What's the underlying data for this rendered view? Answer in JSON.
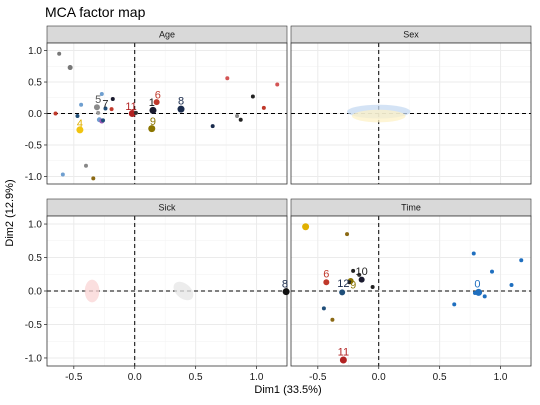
{
  "chart_data": {
    "type": "scatter",
    "title": "MCA factor map",
    "xlabel": "Dim1 (33.5%)",
    "ylabel": "Dim2 (12.9%)",
    "xlim": [
      -0.72,
      1.25
    ],
    "ylim": [
      -1.12,
      1.12
    ],
    "xticks": [
      -0.5,
      0.0,
      0.5,
      1.0
    ],
    "xtick_labels": [
      "-0.5",
      "0.0",
      "0.5",
      "1.0"
    ],
    "yticks": [
      -1.0,
      -0.5,
      0.0,
      0.5,
      1.0
    ],
    "ytick_labels": [
      "-1.0",
      "-0.5",
      "0.0",
      "0.5",
      "1.0"
    ],
    "grid": true,
    "panels": [
      {
        "name": "Age",
        "points": [
          {
            "x": -0.62,
            "y": 0.95,
            "color": "#777777",
            "size": 2
          },
          {
            "x": -0.53,
            "y": 0.73,
            "color": "#777777",
            "size": 2.5
          },
          {
            "x": -0.44,
            "y": 0.14,
            "color": "#6f9fd0",
            "size": 2
          },
          {
            "x": -0.65,
            "y": 0.0,
            "color": "#c0392b",
            "size": 2
          },
          {
            "x": -0.47,
            "y": -0.04,
            "color": "#1f4e79",
            "size": 2
          },
          {
            "x": -0.31,
            "y": 0.1,
            "color": "#8a8a8a",
            "size": 3
          },
          {
            "x": -0.27,
            "y": 0.31,
            "color": "#6f9fd0",
            "size": 2
          },
          {
            "x": -0.24,
            "y": 0.08,
            "color": "#1f4e79",
            "size": 2
          },
          {
            "x": -0.18,
            "y": 0.23,
            "color": "#1a1a2e",
            "size": 2
          },
          {
            "x": -0.19,
            "y": 0.07,
            "color": "#c0392b",
            "size": 2
          },
          {
            "x": -0.29,
            "y": -0.1,
            "color": "#6f9fd0",
            "size": 2.5
          },
          {
            "x": -0.27,
            "y": -0.12,
            "color": "#9b59b6",
            "size": 2.5
          },
          {
            "x": -0.26,
            "y": -0.11,
            "color": "#1f4e79",
            "size": 2
          },
          {
            "x": -0.3,
            "y": 0.01,
            "color": "#999999",
            "size": 2
          },
          {
            "x": -0.45,
            "y": -0.26,
            "color": "#f1c40f",
            "size": 3.5
          },
          {
            "x": -0.02,
            "y": 0.0,
            "color": "#b22222",
            "size": 3.5
          },
          {
            "x": 0.01,
            "y": 0.01,
            "color": "#333333",
            "size": 2
          },
          {
            "x": 0.15,
            "y": 0.05,
            "color": "#1a1a2e",
            "size": 3.5
          },
          {
            "x": 0.18,
            "y": 0.18,
            "color": "#c0392b",
            "size": 3
          },
          {
            "x": 0.14,
            "y": -0.24,
            "color": "#8b7500",
            "size": 3.5
          },
          {
            "x": 0.38,
            "y": 0.07,
            "color": "#1a2b4c",
            "size": 3.5
          },
          {
            "x": 0.64,
            "y": -0.2,
            "color": "#1a2b4c",
            "size": 2
          },
          {
            "x": 0.76,
            "y": 0.56,
            "color": "#d35454",
            "size": 2
          },
          {
            "x": 0.84,
            "y": -0.04,
            "color": "#888888",
            "size": 2
          },
          {
            "x": 0.87,
            "y": -0.1,
            "color": "#222222",
            "size": 2
          },
          {
            "x": 0.97,
            "y": 0.27,
            "color": "#222222",
            "size": 2
          },
          {
            "x": 1.06,
            "y": 0.09,
            "color": "#c0392b",
            "size": 2
          },
          {
            "x": 1.17,
            "y": 0.46,
            "color": "#d35454",
            "size": 2
          },
          {
            "x": -0.4,
            "y": -0.83,
            "color": "#888888",
            "size": 2
          },
          {
            "x": -0.59,
            "y": -0.97,
            "color": "#6f9fd0",
            "size": 2
          },
          {
            "x": -0.34,
            "y": -1.03,
            "color": "#8b6914",
            "size": 2
          }
        ],
        "labels": [
          {
            "text": "4",
            "x": -0.45,
            "y": -0.15,
            "color": "#e0b000"
          },
          {
            "text": "5",
            "x": -0.3,
            "y": 0.23,
            "color": "#555555"
          },
          {
            "text": "7",
            "x": -0.24,
            "y": 0.16,
            "color": "#222222"
          },
          {
            "text": "11",
            "x": -0.03,
            "y": 0.12,
            "color": "#b22222"
          },
          {
            "text": "1",
            "x": 0.14,
            "y": 0.18,
            "color": "#111111"
          },
          {
            "text": "6",
            "x": 0.19,
            "y": 0.3,
            "color": "#c0392b"
          },
          {
            "text": "8",
            "x": 0.38,
            "y": 0.21,
            "color": "#1a2b4c"
          },
          {
            "text": "9",
            "x": 0.15,
            "y": -0.12,
            "color": "#8b7500"
          }
        ],
        "ellipses": []
      },
      {
        "name": "Sex",
        "points": [],
        "labels": [],
        "ellipses": [
          {
            "cx": 0.0,
            "cy": 0.03,
            "rx": 0.26,
            "ry": 0.11,
            "color": "#c5d9f1"
          },
          {
            "cx": 0.0,
            "cy": -0.04,
            "rx": 0.22,
            "ry": 0.1,
            "color": "#fdf1c7"
          }
        ]
      },
      {
        "name": "Sick",
        "points": [],
        "labels": [],
        "ellipses": [
          {
            "cx": -0.35,
            "cy": 0.0,
            "rx": 0.06,
            "ry": 0.17,
            "color": "#f9d4d4"
          },
          {
            "cx": 0.4,
            "cy": 0.0,
            "rx": 0.06,
            "ry": 0.17,
            "color": "#e6e6e6",
            "rotate": 50
          }
        ]
      },
      {
        "name": "Time",
        "points": [
          {
            "x": -0.6,
            "y": 0.96,
            "color": "#e0b000",
            "size": 3.5
          },
          {
            "x": -0.26,
            "y": 0.85,
            "color": "#8b6914",
            "size": 2
          },
          {
            "x": 0.78,
            "y": 0.56,
            "color": "#1f6fbf",
            "size": 2
          },
          {
            "x": 0.93,
            "y": 0.29,
            "color": "#1f6fbf",
            "size": 2
          },
          {
            "x": 1.17,
            "y": 0.46,
            "color": "#1f6fbf",
            "size": 2
          },
          {
            "x": 1.09,
            "y": 0.09,
            "color": "#1f6fbf",
            "size": 2
          },
          {
            "x": -0.21,
            "y": 0.3,
            "color": "#222222",
            "size": 2
          },
          {
            "x": -0.16,
            "y": 0.24,
            "color": "#333333",
            "size": 2
          },
          {
            "x": -0.14,
            "y": 0.17,
            "color": "#1a1a2e",
            "size": 3
          },
          {
            "x": -0.23,
            "y": 0.15,
            "color": "#8b7500",
            "size": 3
          },
          {
            "x": -0.24,
            "y": 0.13,
            "color": "#222222",
            "size": 2
          },
          {
            "x": -0.05,
            "y": 0.06,
            "color": "#222222",
            "size": 2
          },
          {
            "x": -0.76,
            "y": -0.01,
            "color": "#111111",
            "size": 3.5
          },
          {
            "x": -0.43,
            "y": 0.13,
            "color": "#c0392b",
            "size": 3
          },
          {
            "x": -0.3,
            "y": -0.02,
            "color": "#1f4e79",
            "size": 3
          },
          {
            "x": 0.82,
            "y": -0.02,
            "color": "#1f6fbf",
            "size": 3.5
          },
          {
            "x": 0.79,
            "y": -0.03,
            "color": "#1f6fbf",
            "size": 2
          },
          {
            "x": 0.62,
            "y": -0.2,
            "color": "#1f6fbf",
            "size": 2
          },
          {
            "x": 0.87,
            "y": -0.08,
            "color": "#1f6fbf",
            "size": 2
          },
          {
            "x": -0.45,
            "y": -0.26,
            "color": "#1f4e79",
            "size": 2
          },
          {
            "x": -0.38,
            "y": -0.43,
            "color": "#8b6914",
            "size": 2
          },
          {
            "x": -0.29,
            "y": -1.03,
            "color": "#b22222",
            "size": 3.5
          }
        ],
        "labels": [
          {
            "text": "8",
            "x": -0.77,
            "y": 0.11,
            "color": "#1a2b4c"
          },
          {
            "text": "6",
            "x": -0.43,
            "y": 0.26,
            "color": "#c0392b"
          },
          {
            "text": "12",
            "x": -0.29,
            "y": 0.12,
            "color": "#1a2b4c"
          },
          {
            "text": "10",
            "x": -0.14,
            "y": 0.3,
            "color": "#222222"
          },
          {
            "text": "9",
            "x": -0.21,
            "y": 0.1,
            "color": "#8b7500"
          },
          {
            "text": "0",
            "x": 0.81,
            "y": 0.11,
            "color": "#1f6fbf"
          },
          {
            "text": "11",
            "x": -0.29,
            "y": -0.9,
            "color": "#b22222"
          }
        ],
        "ellipses": []
      }
    ]
  }
}
